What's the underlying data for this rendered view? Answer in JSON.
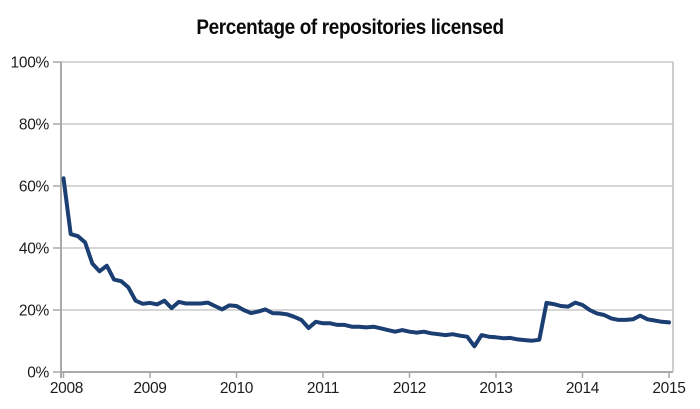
{
  "title": "Percentage of repositories licensed",
  "colors": {
    "line": "#1b3e73",
    "gridline": "#c9c9c9",
    "axis": "#a9a9a9",
    "border": "#bdbdbd",
    "label_text": "#1c1c1c",
    "background": "#ffffff"
  },
  "chart_data": {
    "type": "line",
    "title": "Percentage of repositories licensed",
    "xlabel": "",
    "ylabel": "",
    "x_unit": "month",
    "x_start": "2008-01",
    "x_end": "2015-01",
    "x_step_months": 1,
    "x_tick_labels": [
      "2008",
      "2009",
      "2010",
      "2011",
      "2012",
      "2013",
      "2014",
      "2015"
    ],
    "y_tick_labels": [
      "0%",
      "20%",
      "40%",
      "60%",
      "80%",
      "100%"
    ],
    "y_tick_values": [
      0,
      20,
      40,
      60,
      80,
      100
    ],
    "ylim": [
      0,
      100
    ],
    "grid": "horizontal",
    "legend": "none",
    "series": [
      {
        "name": "Percentage of repositories licensed",
        "unit": "percent",
        "values": [
          62.5,
          44.5,
          43.8,
          41.8,
          35.0,
          32.5,
          34.3,
          29.8,
          29.3,
          27.3,
          23.0,
          22.0,
          22.3,
          21.8,
          23.0,
          20.6,
          22.6,
          22.1,
          22.1,
          22.1,
          22.4,
          21.3,
          20.2,
          21.5,
          21.3,
          20.0,
          19.0,
          19.5,
          20.2,
          19.0,
          18.9,
          18.6,
          17.8,
          16.8,
          14.2,
          16.2,
          15.7,
          15.7,
          15.2,
          15.2,
          14.6,
          14.6,
          14.4,
          14.6,
          14.1,
          13.5,
          13.0,
          13.5,
          13.0,
          12.7,
          13.0,
          12.5,
          12.2,
          11.9,
          12.2,
          11.7,
          11.4,
          8.3,
          11.9,
          11.4,
          11.2,
          10.9,
          11.0,
          10.5,
          10.3,
          10.1,
          10.4,
          22.3,
          21.9,
          21.3,
          21.1,
          22.4,
          21.6,
          20.0,
          18.9,
          18.4,
          17.3,
          16.8,
          16.8,
          17.0,
          18.2,
          17.0,
          16.6,
          16.2,
          16.0
        ]
      }
    ]
  }
}
